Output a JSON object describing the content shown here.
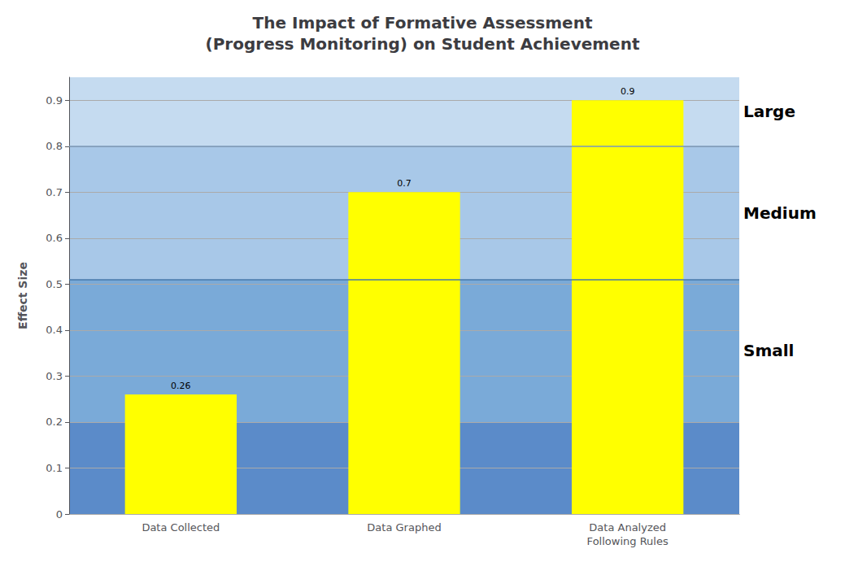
{
  "chart_data": {
    "type": "bar",
    "title": "The Impact of Formative Assessment\n(Progress Monitoring) on Student Achievement",
    "categories": [
      "Data Collected",
      "Data Graphed",
      "Data Analyzed\nFollowing Rules"
    ],
    "values": [
      0.26,
      0.7,
      0.9
    ],
    "color": "#ffff00",
    "ylabel": "Effect Size",
    "ylim": [
      0,
      0.95
    ],
    "yticks": [
      0,
      0.1,
      0.2,
      0.3,
      0.4,
      0.5,
      0.6,
      0.7,
      0.8,
      0.9
    ],
    "grid": true,
    "data_labels": true,
    "bands": [
      {
        "from": 0,
        "to": 0.2,
        "color": "#5b8bc9"
      },
      {
        "from": 0.2,
        "to": 0.51,
        "color": "#7aaad8",
        "label": "Small"
      },
      {
        "from": 0.51,
        "to": 0.8,
        "color": "#a8c8e8",
        "label": "Medium"
      },
      {
        "from": 0.8,
        "to": 0.95,
        "color": "#c5dbf0",
        "label": "Large"
      }
    ],
    "lines": [
      {
        "y": 0.51,
        "color": "#4477aa"
      },
      {
        "y": 0.8,
        "color": "#7799bb"
      }
    ]
  }
}
